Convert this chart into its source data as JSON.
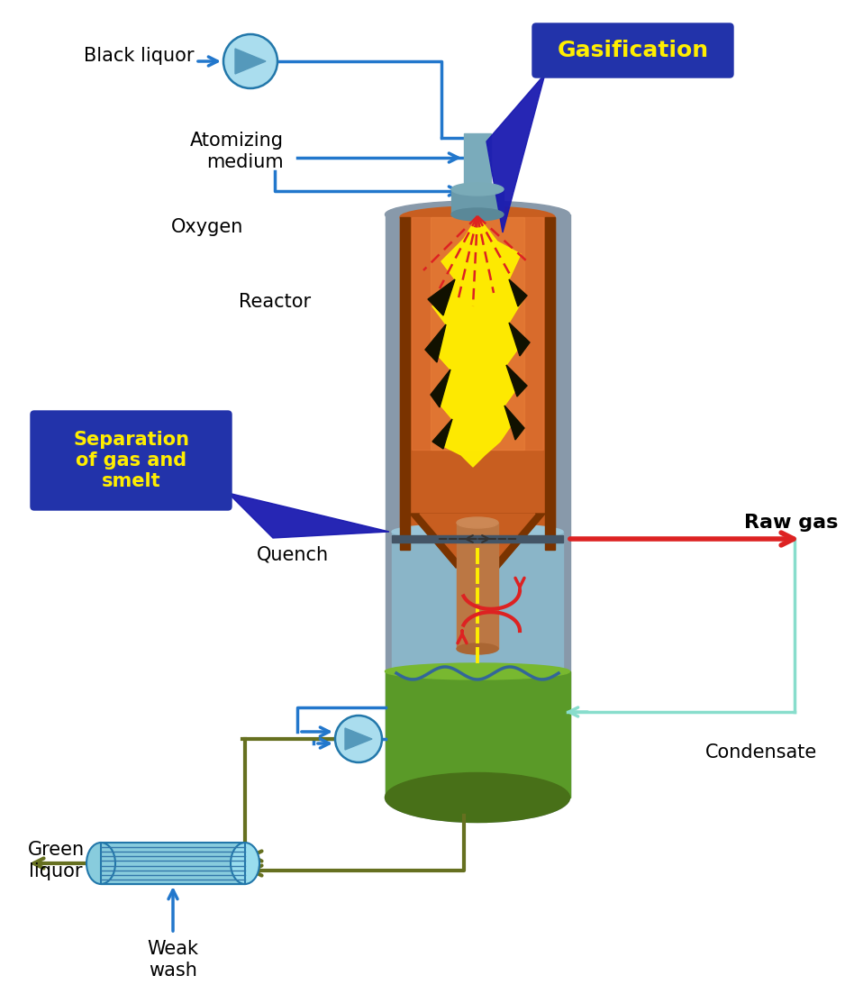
{
  "bg_color": "#ffffff",
  "labels": {
    "black_liquor": "Black liquor",
    "atomizing_medium": "Atomizing\nmedium",
    "oxygen": "Oxygen",
    "reactor": "Reactor",
    "gasification": "Gasification",
    "separation": "Separation\nof gas and\nsmelt",
    "quench": "Quench",
    "raw_gas": "Raw gas",
    "condensate": "Condensate",
    "green_liquor": "Green\nliquor",
    "weak_wash": "Weak\nwash"
  },
  "colors": {
    "blue_dark": "#1a1ab0",
    "blue_flow": "#2277cc",
    "blue_light": "#88ccee",
    "blue_steel": "#7baab8",
    "nozzle_color": "#7aabbb",
    "outer_vessel": "#8899aa",
    "inner_wall": "#7a3300",
    "chamber_orange": "#c85e20",
    "orange_light": "#e07830",
    "yellow_flame": "#ffee00",
    "red_arrow": "#dd2222",
    "green_smelt": "#5a9a28",
    "green_smelt2": "#487018",
    "teal": "#7accbb",
    "teal_line": "#88ddcc",
    "olive": "#667020",
    "pump_fill": "#aaddee",
    "pump_tri": "#5599bb",
    "label_bg": "#2233aa",
    "quench_blue": "#8ab5c8",
    "plate_gray": "#445566"
  }
}
